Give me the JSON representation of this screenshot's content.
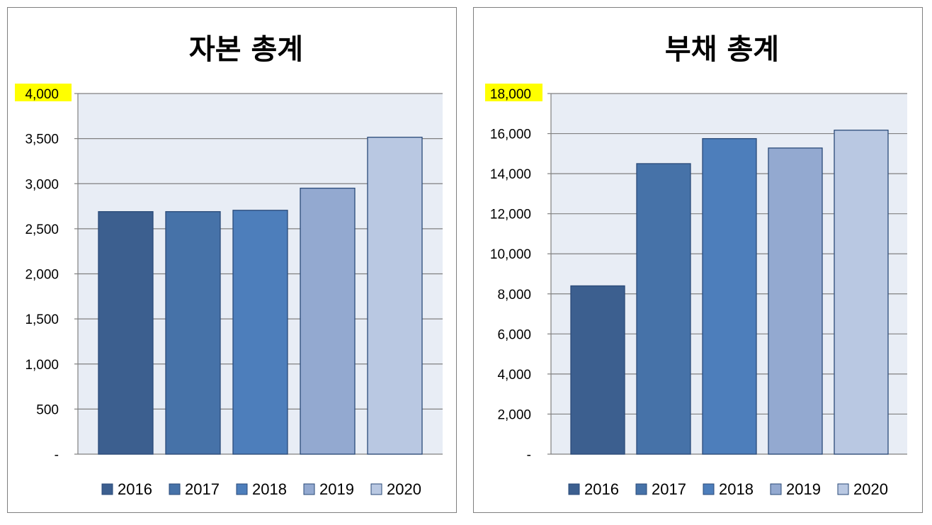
{
  "highlight_color": "#ffff00",
  "chart_data": [
    {
      "type": "bar",
      "title": "자본 총계",
      "categories": [
        "2016",
        "2017",
        "2018",
        "2019",
        "2020"
      ],
      "values": [
        2690,
        2690,
        2705,
        2950,
        3515
      ],
      "ylim": [
        0,
        4000
      ],
      "yticks": [
        0,
        500,
        1000,
        1500,
        2000,
        2500,
        3000,
        3500,
        4000
      ],
      "ytick_labels": [
        "-",
        "500",
        "1,000",
        "1,500",
        "2,000",
        "2,500",
        "3,000",
        "3,500",
        "4,000"
      ],
      "highlighted_tick": "4,000",
      "legend": [
        "2016",
        "2017",
        "2018",
        "2019",
        "2020"
      ],
      "legend_position": "bottom",
      "grid": true,
      "plot_background": "#e8edf5",
      "colors": [
        "#3c5f8f",
        "#4672a8",
        "#4d7ebb",
        "#93a9d0",
        "#b9c8e2"
      ]
    },
    {
      "type": "bar",
      "title": "부채 총계",
      "categories": [
        "2016",
        "2017",
        "2018",
        "2019",
        "2020"
      ],
      "values": [
        8400,
        14500,
        15750,
        15280,
        16170
      ],
      "ylim": [
        0,
        18000
      ],
      "yticks": [
        0,
        2000,
        4000,
        6000,
        8000,
        10000,
        12000,
        14000,
        16000,
        18000
      ],
      "ytick_labels": [
        "-",
        "2,000",
        "4,000",
        "6,000",
        "8,000",
        "10,000",
        "12,000",
        "14,000",
        "16,000",
        "18,000"
      ],
      "highlighted_tick": "18,000",
      "legend": [
        "2016",
        "2017",
        "2018",
        "2019",
        "2020"
      ],
      "legend_position": "bottom",
      "grid": true,
      "plot_background": "#e8edf5",
      "colors": [
        "#3c5f8f",
        "#4672a8",
        "#4d7ebb",
        "#93a9d0",
        "#b9c8e2"
      ]
    }
  ]
}
